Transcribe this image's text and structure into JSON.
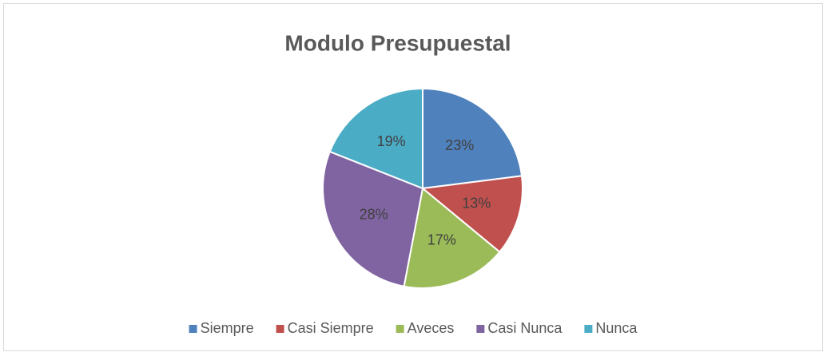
{
  "chart_data": {
    "type": "pie",
    "title": "Modulo Presupuestal",
    "categories": [
      "Siempre",
      "Casi Siempre",
      "Aveces",
      "Casi Nunca",
      "Nunca"
    ],
    "values": [
      23,
      13,
      17,
      28,
      19
    ],
    "value_labels": [
      "23%",
      "13%",
      "17%",
      "28%",
      "19%"
    ],
    "colors": [
      "#4f81bd",
      "#c0504d",
      "#9bbb59",
      "#8064a2",
      "#4bacc6"
    ],
    "legend": "bottom"
  }
}
